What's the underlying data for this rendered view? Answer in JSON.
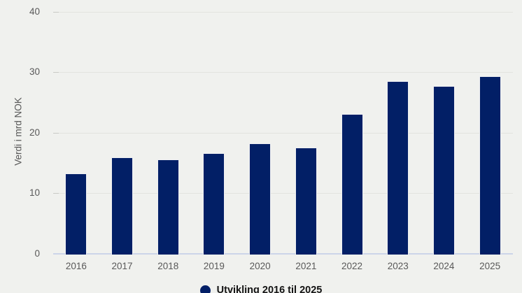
{
  "chart_data": {
    "type": "bar",
    "categories": [
      "2016",
      "2017",
      "2018",
      "2019",
      "2020",
      "2021",
      "2022",
      "2023",
      "2024",
      "2025"
    ],
    "values": [
      13.3,
      15.9,
      15.6,
      16.6,
      18.2,
      17.5,
      23.1,
      28.5,
      27.7,
      29.4
    ],
    "title": "",
    "xlabel": "",
    "ylabel": "Verdi i mrd NOK",
    "ylim": [
      0,
      40
    ],
    "yticks": [
      0,
      10,
      20,
      30,
      40
    ],
    "grid": true,
    "legend_position": "bottom",
    "legend": "Utvikling 2016 til 2025"
  },
  "colors": {
    "background": "#f0f1ee",
    "bar": "#021f66",
    "gridline": "#e2e3df",
    "baseline": "#ccd4e9",
    "tick_text": "#595959",
    "axis_title_text": "#595959",
    "legend_text": "#141414"
  }
}
